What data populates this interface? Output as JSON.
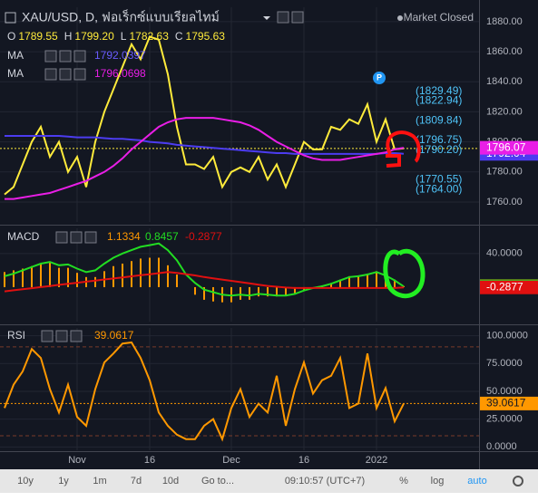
{
  "header": {
    "symbol": "XAU/USD, D, ฟอเร็กซ์แบบเรียลไทม์",
    "status": "Market Closed",
    "ohlc": [
      {
        "label": "O",
        "value": "1789.55"
      },
      {
        "label": "H",
        "value": "1799.20"
      },
      {
        "label": "L",
        "value": "1782.63"
      },
      {
        "label": "C",
        "value": "1795.63"
      }
    ]
  },
  "chart_data": [
    {
      "type": "line",
      "categories": [
        null,
        null,
        null,
        null,
        null,
        null,
        null,
        null,
        "Nov",
        null,
        null,
        null,
        null,
        null,
        null,
        null,
        "16",
        null,
        null,
        null,
        null,
        null,
        null,
        null,
        null,
        "Dec",
        null,
        null,
        null,
        null,
        null,
        null,
        null,
        "16",
        null,
        null,
        null,
        null,
        null,
        null,
        null,
        "2022",
        null,
        null,
        null
      ],
      "series": [
        {
          "color": "#ffeb3b",
          "last_line": true,
          "values": [
            1765,
            1770,
            1785,
            1800,
            1810,
            1790,
            1800,
            1780,
            1790,
            1770,
            1800,
            1820,
            1835,
            1850,
            1865,
            1855,
            1870,
            1868,
            1845,
            1810,
            1785,
            1785,
            1782,
            1790,
            1770,
            1780,
            1783,
            1780,
            1790,
            1775,
            1785,
            1770,
            1785,
            1800,
            1795,
            1795,
            1810,
            1808,
            1815,
            1812,
            1825,
            1800,
            1815,
            1795,
            1795.63
          ]
        },
        {
          "name": "MA",
          "color": "#4c3cf0",
          "last_label": "1792.04",
          "values": [
            1804,
            1804,
            1804,
            1804,
            1804,
            1804,
            1804,
            1803.5,
            1803,
            1803,
            1803,
            1802.5,
            1802,
            1802,
            1801.5,
            1801,
            1800,
            1799.5,
            1799,
            1798,
            1797.5,
            1797,
            1796.5,
            1796,
            1795.5,
            1795,
            1794.5,
            1794,
            1793.5,
            1793,
            1792.5,
            1792.5,
            1792,
            1792,
            1792,
            1792,
            1792,
            1792,
            1792,
            1792,
            1792,
            1792,
            1792.5,
            1792.5,
            1792.0397
          ]
        },
        {
          "name": "MA",
          "color": "#e91ee6",
          "last_label": "1796.07",
          "values": [
            1762,
            1762,
            1763,
            1764,
            1765,
            1766,
            1768,
            1770,
            1772,
            1774,
            1777,
            1780,
            1784,
            1789,
            1795,
            1800,
            1805,
            1810,
            1813,
            1815,
            1816,
            1816,
            1816,
            1816,
            1815,
            1814,
            1813,
            1811,
            1808,
            1804,
            1800,
            1797,
            1794,
            1791,
            1789,
            1788,
            1788,
            1788,
            1789,
            1790,
            1791,
            1792,
            1793,
            1795,
            1796.0698
          ]
        }
      ],
      "ylim": [
        1746.7,
        1889.6
      ],
      "yticks": [
        {
          "value": 1880,
          "label": "1880.00"
        },
        {
          "value": 1860,
          "label": "1860.00"
        },
        {
          "value": 1840,
          "label": "1840.00"
        },
        {
          "value": 1820,
          "label": "1820.00"
        },
        {
          "value": 1800,
          "label": "1800.00"
        },
        {
          "value": 1780,
          "label": "1780.00"
        },
        {
          "value": 1760,
          "label": "1760.00"
        }
      ],
      "levels": [
        {
          "value": 1829.49,
          "label": "(1829.49)"
        },
        {
          "value": 1822.94,
          "label": "(1822.94)"
        },
        {
          "value": 1809.84,
          "label": "(1809.84)"
        },
        {
          "value": 1796.75,
          "label": "(1796.75)"
        },
        {
          "value": 1790.2,
          "label": "(1790.20)"
        },
        {
          "value": 1770.55,
          "label": "(1770.55)"
        },
        {
          "value": 1764.0,
          "label": "(1764.00)"
        }
      ],
      "grid": true
    },
    {
      "type": "line",
      "title": "MACD",
      "categories": [
        null,
        null,
        null,
        null,
        null,
        null,
        null,
        null,
        "Nov",
        null,
        null,
        null,
        null,
        null,
        null,
        null,
        "16",
        null,
        null,
        null,
        null,
        null,
        null,
        null,
        null,
        "Dec",
        null,
        null,
        null,
        null,
        null,
        null,
        null,
        "16",
        null,
        null,
        null,
        null,
        null,
        null,
        null,
        "2022",
        null,
        null,
        null
      ],
      "series": [
        {
          "style": "histogram",
          "color": "#ff9800",
          "values": [
            18,
            20,
            22,
            25,
            28,
            29,
            23,
            23,
            17,
            12,
            12,
            19,
            25,
            28,
            31,
            34,
            35,
            35,
            26,
            15,
            0,
            -9,
            -15,
            -17,
            -18,
            -18,
            -15,
            -15,
            -11,
            -11,
            -11,
            -10,
            -7,
            -3,
            0,
            2,
            5,
            9,
            13,
            14,
            16,
            19,
            15,
            9,
            1.1334
          ]
        },
        {
          "style": "line",
          "color": "#22dd22",
          "values": [
            13,
            16,
            20,
            24,
            28,
            30,
            26,
            27,
            22,
            18,
            20,
            28,
            35,
            40,
            44,
            48,
            50,
            52,
            44,
            32,
            15,
            5,
            -3,
            -6,
            -9,
            -10,
            -9,
            -10,
            -8,
            -9,
            -10,
            -10,
            -8,
            -4,
            -1,
            1,
            4,
            8,
            12,
            13,
            15,
            18,
            14,
            8,
            0.8457
          ]
        },
        {
          "style": "line",
          "color": "#e01010",
          "values": [
            -5,
            -3.7,
            -2.4,
            -1.2,
            0.1,
            1.4,
            2.7,
            3.9,
            5.2,
            6.5,
            7.8,
            9.1,
            10.3,
            11.6,
            12.9,
            14.2,
            15.4,
            16.7,
            18,
            17,
            15.5,
            14,
            12,
            10.5,
            9,
            7.5,
            6,
            4.5,
            3,
            1.5,
            0.5,
            -0.5,
            -1,
            -1,
            -1,
            -1,
            -1,
            -1,
            -1,
            -1,
            -1,
            -1,
            -1,
            -1,
            -0.2877
          ]
        }
      ],
      "ylim": [
        -41,
        70
      ],
      "yticks": [
        {
          "value": 40,
          "label": "40.0000"
        }
      ],
      "grid": true
    },
    {
      "type": "line",
      "title": "RSI",
      "categories": [
        null,
        null,
        null,
        null,
        null,
        null,
        null,
        null,
        "Nov",
        null,
        null,
        null,
        null,
        null,
        null,
        null,
        "16",
        null,
        null,
        null,
        null,
        null,
        null,
        null,
        null,
        "Dec",
        null,
        null,
        null,
        null,
        null,
        null,
        null,
        "16",
        null,
        null,
        null,
        null,
        null,
        null,
        null,
        "2022",
        null,
        null,
        null
      ],
      "series": [
        {
          "color": "#ff9800",
          "last_line": true,
          "values": [
            35,
            56,
            68,
            88,
            80,
            52,
            31,
            56,
            27,
            19,
            52,
            76,
            84,
            93,
            94,
            80,
            60,
            31,
            19,
            11,
            7,
            7,
            19,
            25,
            7,
            35,
            52,
            27,
            39,
            31,
            64,
            19,
            52,
            76,
            48,
            60,
            64,
            80,
            35,
            39,
            84,
            35,
            53,
            23,
            39.0617
          ]
        }
      ],
      "ylim": [
        -3,
        107
      ],
      "yticks": [
        {
          "value": 100,
          "label": "100.0000"
        },
        {
          "value": 75,
          "label": "75.0000"
        },
        {
          "value": 50,
          "label": "50.0000"
        },
        {
          "value": 25,
          "label": "25.0000"
        },
        {
          "value": 0,
          "label": "0.0000"
        }
      ],
      "bands": [
        90,
        10
      ],
      "grid": true
    }
  ],
  "toolbar": {
    "ranges": [
      "10y",
      "1y",
      "1m",
      "7d",
      "10d"
    ],
    "goto": "Go to...",
    "time": "09:10:57 (UTC+7)",
    "options": [
      "%",
      "log",
      "auto"
    ]
  }
}
